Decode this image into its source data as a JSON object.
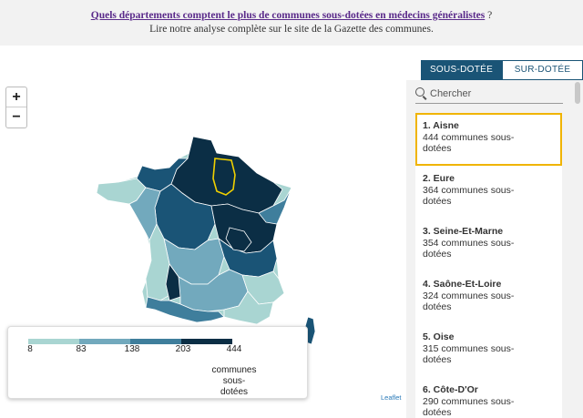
{
  "header": {
    "link_text": "Quels départements comptent le plus de communes sous-dotées en médecins généralistes",
    "link_suffix": " ?",
    "subtitle": "Lire notre analyse complète sur le site de la Gazette des communes."
  },
  "map": {
    "zoom_in": "+",
    "zoom_out": "−",
    "attribution": "Leaflet",
    "colors": [
      "#a9d5d2",
      "#72a9bd",
      "#3f7e9c",
      "#1a5476",
      "#0b2e45"
    ]
  },
  "legend": {
    "ticks": [
      "8",
      "83",
      "138",
      "203",
      "444"
    ],
    "unit_line1": "communes",
    "unit_line2": "sous-",
    "unit_line3": "dotées"
  },
  "tabs": [
    {
      "label": "SOUS-DOTÉE",
      "active": true
    },
    {
      "label": "SUR-DOTÉE",
      "active": false
    }
  ],
  "search": {
    "placeholder": "Chercher"
  },
  "list": [
    {
      "name": "1. Aisne",
      "line1": "444 communes sous-",
      "line2": "dotées"
    },
    {
      "name": "2. Eure",
      "line1": "364 communes sous-",
      "line2": "dotées"
    },
    {
      "name": "3. Seine-Et-Marne",
      "line1": "354 communes sous-",
      "line2": "dotées"
    },
    {
      "name": "4. Saône-Et-Loire",
      "line1": "324 communes sous-",
      "line2": "dotées"
    },
    {
      "name": "5. Oise",
      "line1": "315 communes sous-",
      "line2": "dotées"
    },
    {
      "name": "6. Côte-D'Or",
      "line1": "290 communes sous-",
      "line2": "dotées"
    }
  ]
}
